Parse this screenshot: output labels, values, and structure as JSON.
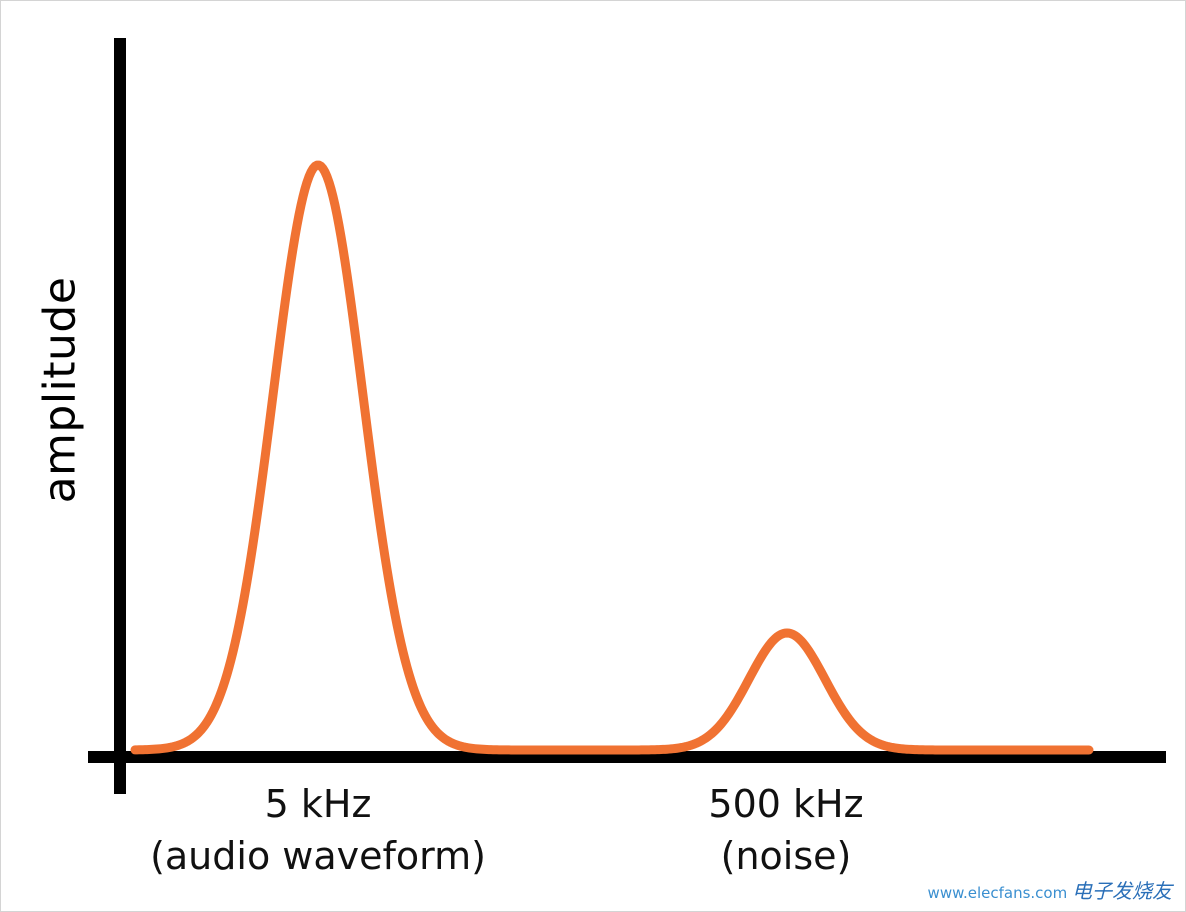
{
  "colors": {
    "curve": "#f07232",
    "axes": "#000000",
    "background": "#ffffff"
  },
  "y_axis_label": "amplitude",
  "peaks": [
    {
      "frequency_label": "5 kHz",
      "description": "(audio waveform)",
      "relative_amplitude": 1.0
    },
    {
      "frequency_label": "500 kHz",
      "description": "(noise)",
      "relative_amplitude": 0.2
    }
  ],
  "watermark": {
    "site": "www.elecfans.com",
    "brand_cn": "电子发烧友"
  }
}
